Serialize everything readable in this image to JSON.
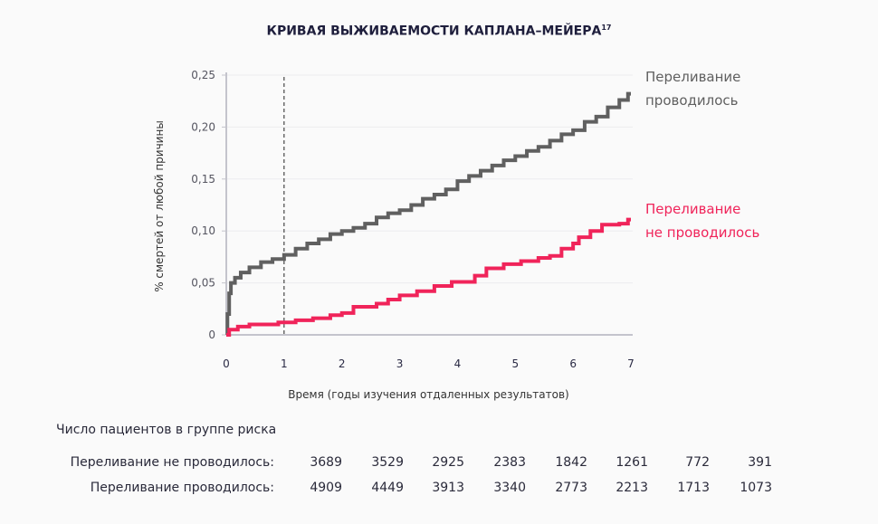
{
  "chart_data": {
    "type": "line",
    "title": "КРИВАЯ ВЫЖИВАЕМОСТИ КАПЛАНА–МЕЙЕРА",
    "title_superscript": "17",
    "xlabel": "Время (годы изучения отдаленных результатов)",
    "ylabel": "% смертей от любой причины",
    "xlim": [
      0,
      7
    ],
    "ylim": [
      0,
      0.25
    ],
    "xticks": [
      "0",
      "1",
      "2",
      "3",
      "4",
      "5",
      "6",
      "7"
    ],
    "yticks": [
      "0",
      "0,05",
      "0,10",
      "0,15",
      "0,20",
      "0,25"
    ],
    "grid": "horizontal",
    "reference_line_x": 1,
    "series": [
      {
        "name": "Переливание проводилось",
        "color": "#606060",
        "step": true,
        "x": [
          0,
          0.02,
          0.05,
          0.08,
          0.15,
          0.25,
          0.4,
          0.6,
          0.8,
          1,
          1.2,
          1.4,
          1.6,
          1.8,
          2,
          2.2,
          2.4,
          2.6,
          2.8,
          3,
          3.2,
          3.4,
          3.6,
          3.8,
          4,
          4.2,
          4.4,
          4.6,
          4.8,
          5,
          5.2,
          5.4,
          5.6,
          5.8,
          6,
          6.2,
          6.4,
          6.6,
          6.8,
          6.95
        ],
        "y": [
          0,
          0.02,
          0.04,
          0.05,
          0.055,
          0.06,
          0.065,
          0.07,
          0.073,
          0.077,
          0.083,
          0.088,
          0.092,
          0.097,
          0.1,
          0.103,
          0.107,
          0.113,
          0.117,
          0.12,
          0.125,
          0.131,
          0.135,
          0.14,
          0.148,
          0.153,
          0.158,
          0.163,
          0.168,
          0.172,
          0.177,
          0.181,
          0.187,
          0.193,
          0.197,
          0.205,
          0.21,
          0.219,
          0.226,
          0.232
        ]
      },
      {
        "name": "Переливание не проводилось",
        "color": "#f0245a",
        "step": true,
        "x": [
          0,
          0.05,
          0.2,
          0.4,
          0.9,
          1.2,
          1.5,
          1.8,
          2,
          2.2,
          2.6,
          2.8,
          3,
          3.3,
          3.6,
          3.9,
          4.3,
          4.5,
          4.8,
          5.1,
          5.4,
          5.6,
          5.8,
          6,
          6.1,
          6.3,
          6.5,
          6.8,
          6.95
        ],
        "y": [
          0,
          0.005,
          0.008,
          0.01,
          0.012,
          0.014,
          0.016,
          0.019,
          0.021,
          0.027,
          0.03,
          0.034,
          0.038,
          0.042,
          0.047,
          0.051,
          0.057,
          0.064,
          0.068,
          0.071,
          0.074,
          0.076,
          0.083,
          0.088,
          0.094,
          0.1,
          0.106,
          0.107,
          0.111
        ]
      }
    ],
    "legend": [
      {
        "lines": [
          "Переливание",
          "проводилось"
        ],
        "color": "#606060"
      },
      {
        "lines": [
          "Переливание",
          "не проводилось"
        ],
        "color": "#f0245a"
      }
    ]
  },
  "risk_table": {
    "title": "Число пациентов в группе риска",
    "rows": [
      {
        "label": "Переливание не проводилось:",
        "values": [
          "3689",
          "3529",
          "2925",
          "2383",
          "1842",
          "1261",
          "772",
          "391"
        ]
      },
      {
        "label": "Переливание проводилось:",
        "values": [
          "4909",
          "4449",
          "3913",
          "3340",
          "2773",
          "2213",
          "1713",
          "1073"
        ]
      }
    ]
  }
}
